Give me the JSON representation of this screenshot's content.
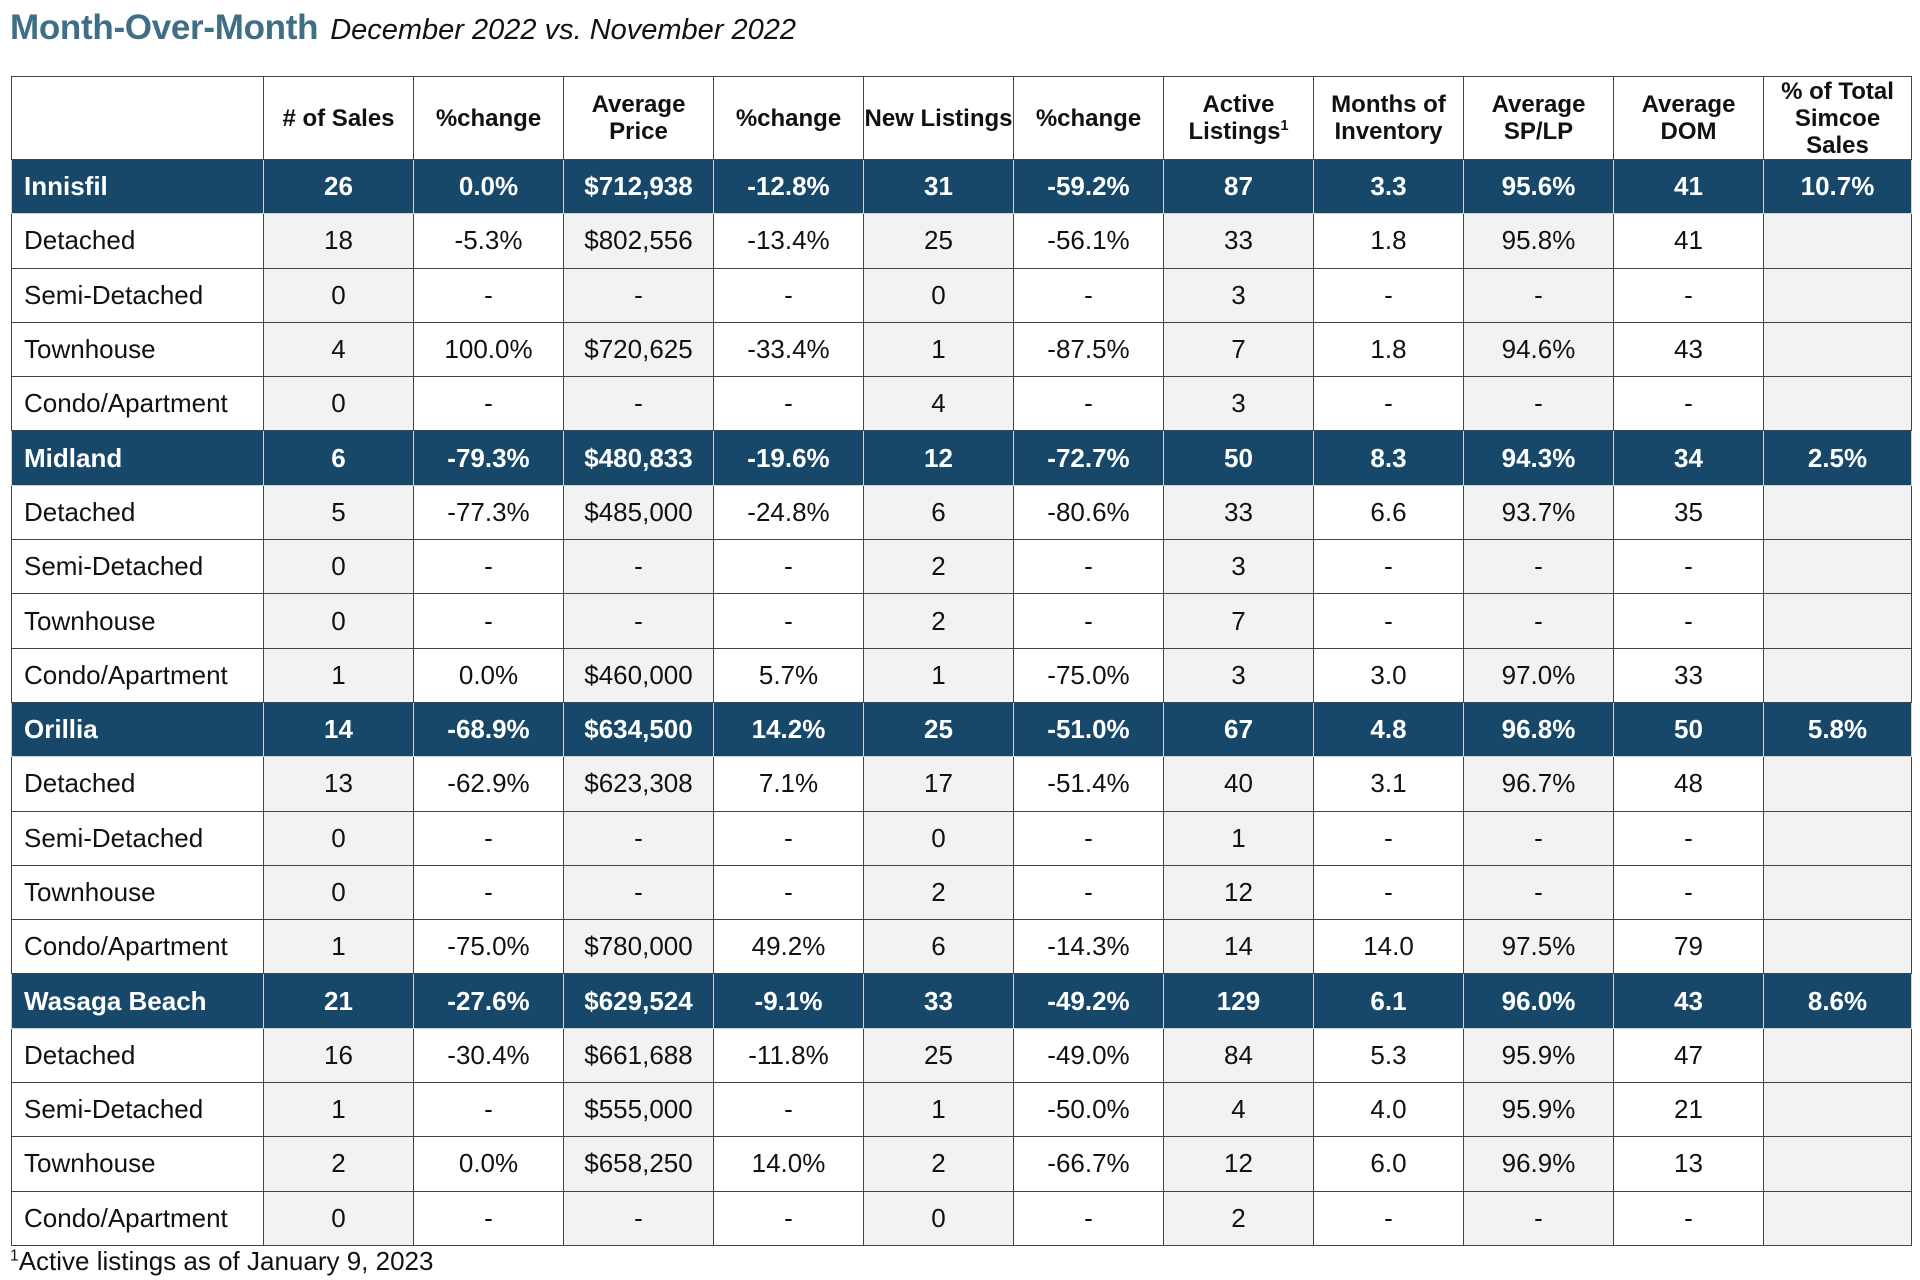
{
  "title": {
    "main": "Month-Over-Month",
    "subtitle": "December 2022 vs. November 2022"
  },
  "columns": [
    "",
    "# of Sales",
    "%change",
    "Average Price",
    "%change",
    "New Listings",
    "%change",
    "Active Listings",
    "Months of Inventory",
    "Average SP/LP",
    "Average DOM",
    "% of Total Simcoe Sales"
  ],
  "active_listings_sup": "1",
  "areas": [
    {
      "name": "Innisfil",
      "values": [
        "26",
        "0.0%",
        "$712,938",
        "-12.8%",
        "31",
        "-59.2%",
        "87",
        "3.3",
        "95.6%",
        "41",
        "10.7%"
      ],
      "rows": [
        {
          "name": "Detached",
          "values": [
            "18",
            "-5.3%",
            "$802,556",
            "-13.4%",
            "25",
            "-56.1%",
            "33",
            "1.8",
            "95.8%",
            "41",
            ""
          ]
        },
        {
          "name": "Semi-Detached",
          "values": [
            "0",
            "-",
            "-",
            "-",
            "0",
            "-",
            "3",
            "-",
            "-",
            "-",
            ""
          ]
        },
        {
          "name": "Townhouse",
          "values": [
            "4",
            "100.0%",
            "$720,625",
            "-33.4%",
            "1",
            "-87.5%",
            "7",
            "1.8",
            "94.6%",
            "43",
            ""
          ]
        },
        {
          "name": "Condo/Apartment",
          "values": [
            "0",
            "-",
            "-",
            "-",
            "4",
            "-",
            "3",
            "-",
            "-",
            "-",
            ""
          ]
        }
      ]
    },
    {
      "name": "Midland",
      "values": [
        "6",
        "-79.3%",
        "$480,833",
        "-19.6%",
        "12",
        "-72.7%",
        "50",
        "8.3",
        "94.3%",
        "34",
        "2.5%"
      ],
      "rows": [
        {
          "name": "Detached",
          "values": [
            "5",
            "-77.3%",
            "$485,000",
            "-24.8%",
            "6",
            "-80.6%",
            "33",
            "6.6",
            "93.7%",
            "35",
            ""
          ]
        },
        {
          "name": "Semi-Detached",
          "values": [
            "0",
            "-",
            "-",
            "-",
            "2",
            "-",
            "3",
            "-",
            "-",
            "-",
            ""
          ]
        },
        {
          "name": "Townhouse",
          "values": [
            "0",
            "-",
            "-",
            "-",
            "2",
            "-",
            "7",
            "-",
            "-",
            "-",
            ""
          ]
        },
        {
          "name": "Condo/Apartment",
          "values": [
            "1",
            "0.0%",
            "$460,000",
            "5.7%",
            "1",
            "-75.0%",
            "3",
            "3.0",
            "97.0%",
            "33",
            ""
          ]
        }
      ]
    },
    {
      "name": "Orillia",
      "values": [
        "14",
        "-68.9%",
        "$634,500",
        "14.2%",
        "25",
        "-51.0%",
        "67",
        "4.8",
        "96.8%",
        "50",
        "5.8%"
      ],
      "rows": [
        {
          "name": "Detached",
          "values": [
            "13",
            "-62.9%",
            "$623,308",
            "7.1%",
            "17",
            "-51.4%",
            "40",
            "3.1",
            "96.7%",
            "48",
            ""
          ]
        },
        {
          "name": "Semi-Detached",
          "values": [
            "0",
            "-",
            "-",
            "-",
            "0",
            "-",
            "1",
            "-",
            "-",
            "-",
            ""
          ]
        },
        {
          "name": "Townhouse",
          "values": [
            "0",
            "-",
            "-",
            "-",
            "2",
            "-",
            "12",
            "-",
            "-",
            "-",
            ""
          ]
        },
        {
          "name": "Condo/Apartment",
          "values": [
            "1",
            "-75.0%",
            "$780,000",
            "49.2%",
            "6",
            "-14.3%",
            "14",
            "14.0",
            "97.5%",
            "79",
            ""
          ]
        }
      ]
    },
    {
      "name": "Wasaga Beach",
      "values": [
        "21",
        "-27.6%",
        "$629,524",
        "-9.1%",
        "33",
        "-49.2%",
        "129",
        "6.1",
        "96.0%",
        "43",
        "8.6%"
      ],
      "rows": [
        {
          "name": "Detached",
          "values": [
            "16",
            "-30.4%",
            "$661,688",
            "-11.8%",
            "25",
            "-49.0%",
            "84",
            "5.3",
            "95.9%",
            "47",
            ""
          ]
        },
        {
          "name": "Semi-Detached",
          "values": [
            "1",
            "-",
            "$555,000",
            "-",
            "1",
            "-50.0%",
            "4",
            "4.0",
            "95.9%",
            "21",
            ""
          ]
        },
        {
          "name": "Townhouse",
          "values": [
            "2",
            "0.0%",
            "$658,250",
            "14.0%",
            "2",
            "-66.7%",
            "12",
            "6.0",
            "96.9%",
            "13",
            ""
          ]
        },
        {
          "name": "Condo/Apartment",
          "values": [
            "0",
            "-",
            "-",
            "-",
            "0",
            "-",
            "2",
            "-",
            "-",
            "-",
            ""
          ]
        }
      ]
    }
  ],
  "footnote": {
    "sup": "1",
    "text": "Active listings as of January 9, 2023"
  }
}
